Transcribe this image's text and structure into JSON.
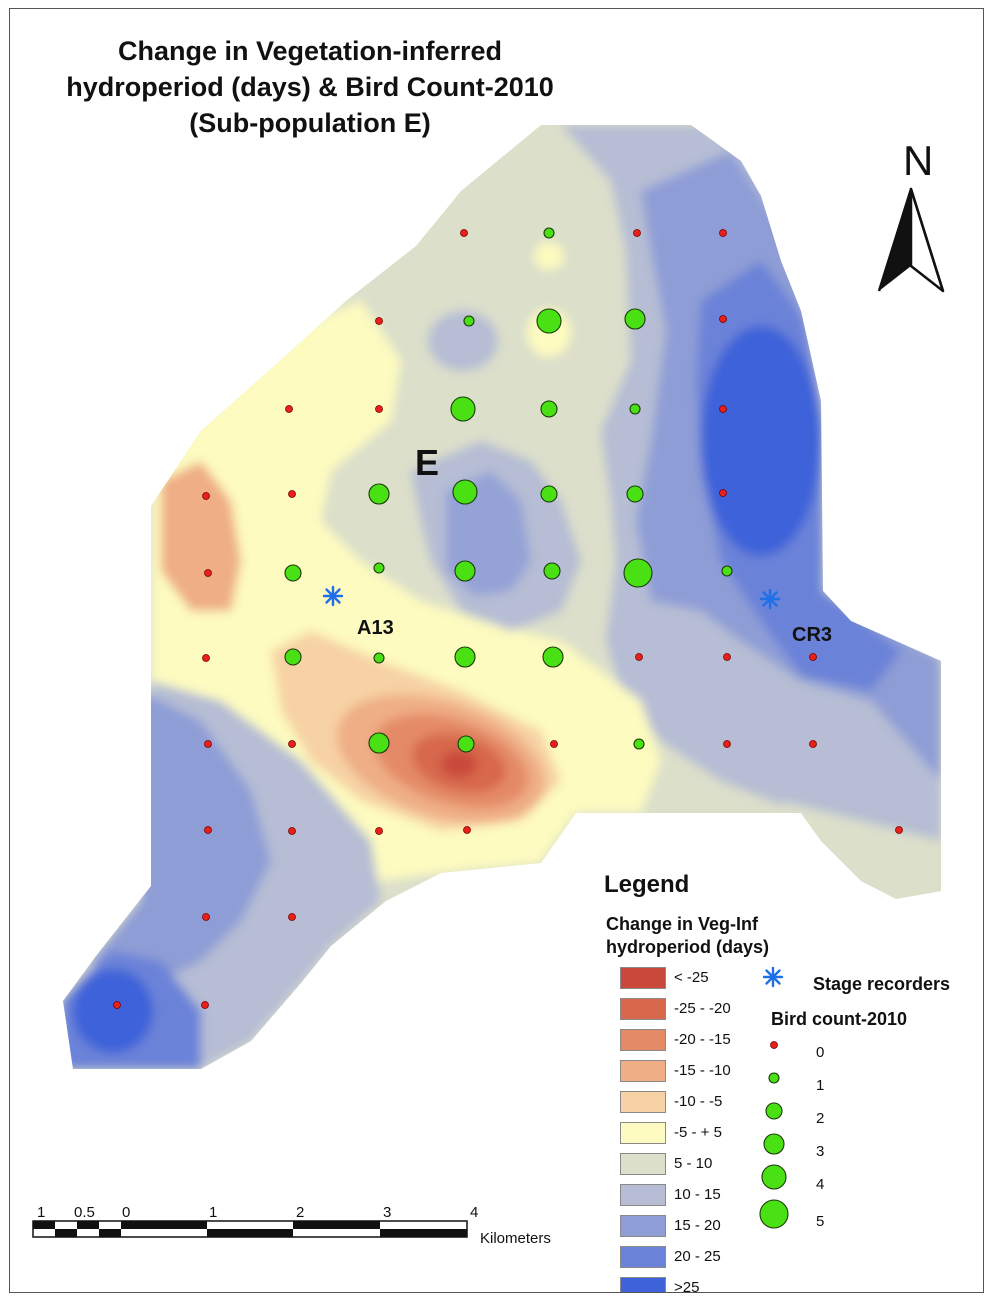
{
  "title": {
    "line1": "Change in Vegetation-inferred",
    "line2": "hydroperiod (days) & Bird Count-2010",
    "line3": "(Sub-population E)"
  },
  "north_arrow": {
    "label": "N"
  },
  "area_label": "E",
  "stage_recorders": [
    {
      "label": "A13"
    },
    {
      "label": "CR3"
    }
  ],
  "legend": {
    "title": "Legend",
    "hydro_title_line1": "Change in Veg-Inf",
    "hydro_title_line2": "hydroperiod (days)",
    "classes": [
      {
        "label": "< -25",
        "color": "#c9483a"
      },
      {
        "label": "-25 - -20",
        "color": "#d7684b"
      },
      {
        "label": "-20 - -15",
        "color": "#e48a66"
      },
      {
        "label": "-15 - -10",
        "color": "#efae85"
      },
      {
        "label": "-10 - -5",
        "color": "#f7d2a4"
      },
      {
        "label": "-5 - + 5",
        "color": "#fdfbbf"
      },
      {
        "label": "5 - 10",
        "color": "#dcdfca"
      },
      {
        "label": "10 - 15",
        "color": "#b6bdd4"
      },
      {
        "label": "15 - 20",
        "color": "#8e9dd6"
      },
      {
        "label": "20 - 25",
        "color": "#6a82d8"
      },
      {
        "label": ">25",
        "color": "#3d62d9"
      }
    ],
    "stage_recorders_label": "Stage recorders",
    "bird_count_title": "Bird count-2010",
    "bird_count_classes": [
      "0",
      "1",
      "2",
      "3",
      "4",
      "5"
    ]
  },
  "scale_bar": {
    "ticks": [
      "1",
      "0.5",
      "0",
      "1",
      "2",
      "3",
      "4"
    ],
    "unit": "Kilometers"
  },
  "bird_points": [
    {
      "count": 0
    },
    {
      "count": 1
    },
    {
      "count": 0
    },
    {
      "count": 0
    },
    {
      "count": 0
    },
    {
      "count": 1
    },
    {
      "count": 4
    },
    {
      "count": 3
    },
    {
      "count": 0
    },
    {
      "count": 0
    },
    {
      "count": 0
    },
    {
      "count": 4
    },
    {
      "count": 2
    },
    {
      "count": 1
    },
    {
      "count": 0
    },
    {
      "count": 0
    },
    {
      "count": 0
    },
    {
      "count": 3
    },
    {
      "count": 4
    },
    {
      "count": 2
    },
    {
      "count": 2
    },
    {
      "count": 0
    },
    {
      "count": 0
    },
    {
      "count": 2
    },
    {
      "count": 1
    },
    {
      "count": 3
    },
    {
      "count": 2
    },
    {
      "count": 5
    },
    {
      "count": 1
    },
    {
      "count": 0
    },
    {
      "count": 2
    },
    {
      "count": 1
    },
    {
      "count": 3
    },
    {
      "count": 3
    },
    {
      "count": 0
    },
    {
      "count": 0
    },
    {
      "count": 0
    },
    {
      "count": 0
    },
    {
      "count": 0
    },
    {
      "count": 3
    },
    {
      "count": 2
    },
    {
      "count": 0
    },
    {
      "count": 1
    },
    {
      "count": 0
    },
    {
      "count": 0
    },
    {
      "count": 0
    },
    {
      "count": 0
    },
    {
      "count": 0
    },
    {
      "count": 0
    },
    {
      "count": 0
    },
    {
      "count": 0
    },
    {
      "count": 0
    },
    {
      "count": 0
    },
    {
      "count": 0
    }
  ]
}
